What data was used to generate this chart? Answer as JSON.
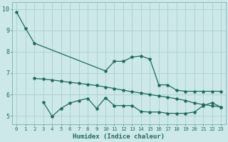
{
  "xlabel": "Humidex (Indice chaleur)",
  "bg_color": "#cce8e8",
  "grid_color": "#aacfcf",
  "line_color": "#1e6b5e",
  "xlim": [
    -0.5,
    23.5
  ],
  "ylim": [
    4.6,
    10.3
  ],
  "xticks": [
    0,
    1,
    2,
    3,
    4,
    5,
    6,
    7,
    8,
    9,
    10,
    11,
    12,
    13,
    14,
    15,
    16,
    17,
    18,
    19,
    20,
    21,
    22,
    23
  ],
  "yticks": [
    5,
    6,
    7,
    8,
    9,
    10
  ],
  "line1_x": [
    0,
    1,
    2,
    10,
    11,
    12,
    13,
    14,
    15,
    16,
    17,
    18,
    19,
    20,
    21,
    22,
    23
  ],
  "line1_y": [
    9.85,
    9.1,
    8.4,
    7.1,
    7.55,
    7.55,
    7.75,
    7.8,
    7.65,
    6.45,
    6.45,
    6.2,
    6.15,
    6.15,
    6.15,
    6.15,
    6.15
  ],
  "line2_x": [
    2,
    3,
    4,
    5,
    6,
    7,
    8,
    9,
    10,
    11,
    12,
    13,
    14,
    15,
    16,
    17,
    18,
    19,
    20,
    21,
    22,
    23
  ],
  "line2_y": [
    6.75,
    6.72,
    6.68,
    6.62,
    6.57,
    6.52,
    6.47,
    6.42,
    6.35,
    6.28,
    6.2,
    6.13,
    6.07,
    6.0,
    5.93,
    5.87,
    5.8,
    5.72,
    5.6,
    5.53,
    5.47,
    5.42
  ],
  "line3_x": [
    3,
    4,
    5,
    6,
    7,
    8,
    9,
    10,
    11,
    12,
    13,
    14,
    15,
    16,
    17,
    18,
    19,
    20,
    21,
    22,
    23
  ],
  "line3_y": [
    5.65,
    4.98,
    5.35,
    5.6,
    5.72,
    5.82,
    5.35,
    5.85,
    5.48,
    5.48,
    5.48,
    5.2,
    5.18,
    5.18,
    5.12,
    5.12,
    5.12,
    5.18,
    5.48,
    5.62,
    5.4
  ],
  "xlabel_fontsize": 6.5,
  "tick_fontsize_x": 5.2,
  "tick_fontsize_y": 6.0,
  "linewidth": 0.9,
  "markersize": 2.5
}
